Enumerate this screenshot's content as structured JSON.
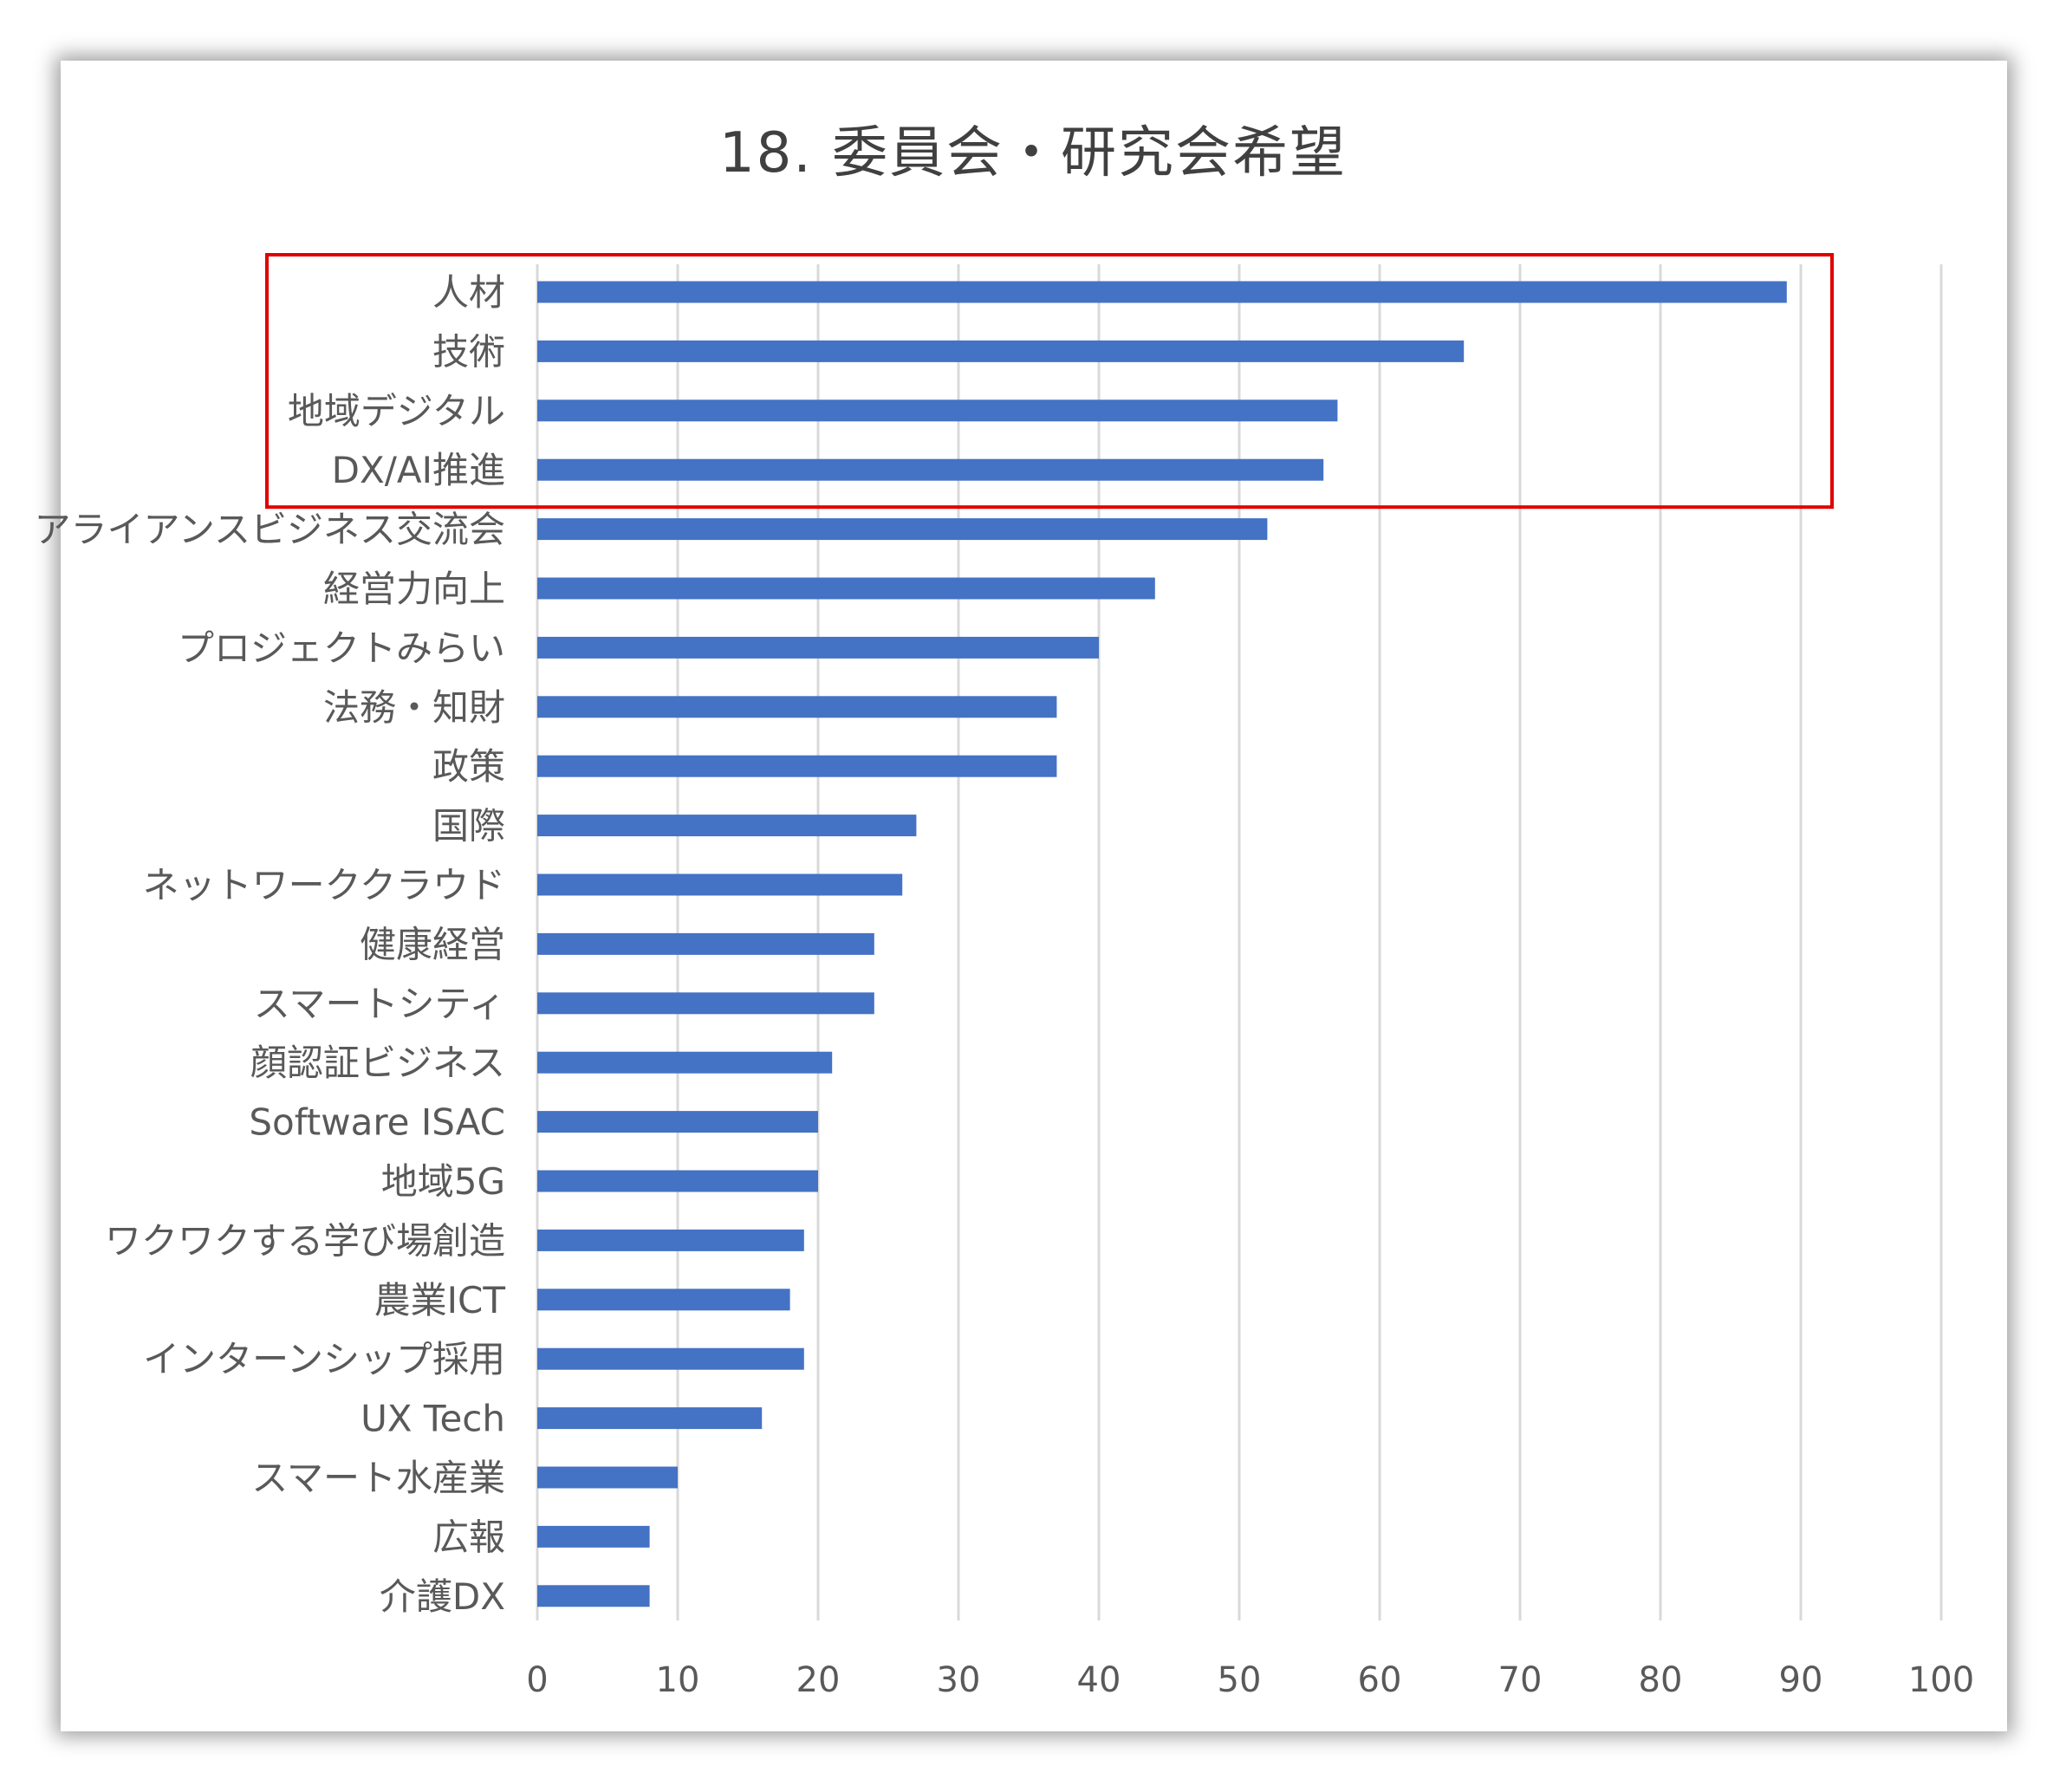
{
  "colors": {
    "bar": "#4472c4",
    "highlight_box": "#e00000",
    "grid": "#d9d9d9",
    "text": "#595959"
  },
  "chart_data": {
    "type": "bar",
    "orientation": "horizontal",
    "title": "18. 委員会・研究会希望",
    "xlabel": "",
    "ylabel": "",
    "xlim": [
      0,
      100
    ],
    "x_ticks": [
      0,
      10,
      20,
      30,
      40,
      50,
      60,
      70,
      80,
      90,
      100
    ],
    "grid": true,
    "legend": "none",
    "highlight": {
      "style": "red outline box",
      "categories": [
        "人材",
        "技術",
        "地域デジタル",
        "DX/AI推進"
      ]
    },
    "categories": [
      "人材",
      "技術",
      "地域デジタル",
      "DX/AI推進",
      "アライアンスビジネス交流会",
      "経営力向上",
      "プロジェクトみらい",
      "法務・知財",
      "政策",
      "国際",
      "ネットワーククラウド",
      "健康経営",
      "スマートシティ",
      "顔認証ビジネス",
      "Software ISAC",
      "地域5G",
      "ワクワクする学び場創造",
      "農業ICT",
      "インターンシップ採用",
      "UX Tech",
      "スマート水産業",
      "広報",
      "介護DX"
    ],
    "values": [
      89,
      66,
      57,
      56,
      52,
      44,
      40,
      37,
      37,
      27,
      26,
      24,
      24,
      21,
      20,
      20,
      19,
      18,
      19,
      16,
      10,
      8,
      8
    ]
  }
}
